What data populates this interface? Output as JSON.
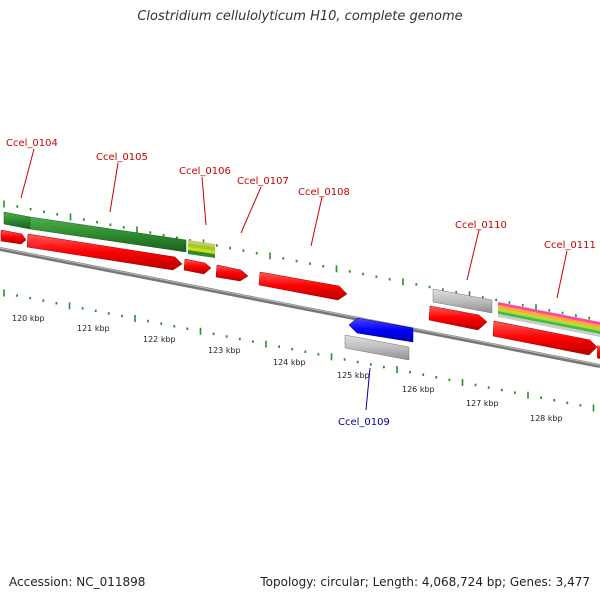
{
  "title": "Clostridium cellulolyticum H10, complete genome",
  "footer": {
    "accession": "Accession: NC_011898",
    "summary": "Topology: circular; Length: 4,068,724 bp; Genes: 3,477"
  },
  "ticks": [
    "120 kbp",
    "121 kbp",
    "122 kbp",
    "123 kbp",
    "124 kbp",
    "125 kbp",
    "126 kbp",
    "127 kbp",
    "128 kbp"
  ],
  "genes": [
    {
      "id": "Ccel_0104",
      "color": "#cc0000"
    },
    {
      "id": "Ccel_0105",
      "color": "#cc0000"
    },
    {
      "id": "Ccel_0106",
      "color": "#cc0000"
    },
    {
      "id": "Ccel_0107",
      "color": "#cc0000"
    },
    {
      "id": "Ccel_0108",
      "color": "#cc0000"
    },
    {
      "id": "Ccel_0109",
      "color": "#000099"
    },
    {
      "id": "Ccel_0110",
      "color": "#cc0000"
    },
    {
      "id": "Ccel_0111",
      "color": "#cc0000"
    }
  ],
  "colors": {
    "backbone": "#888888",
    "cds_forward": "#ff0000",
    "cds_reverse": "#0000ff",
    "feature_green": "#2e8b2e",
    "feature_gray": "#bbbbbb",
    "tick_green": "#2e8b2e"
  }
}
